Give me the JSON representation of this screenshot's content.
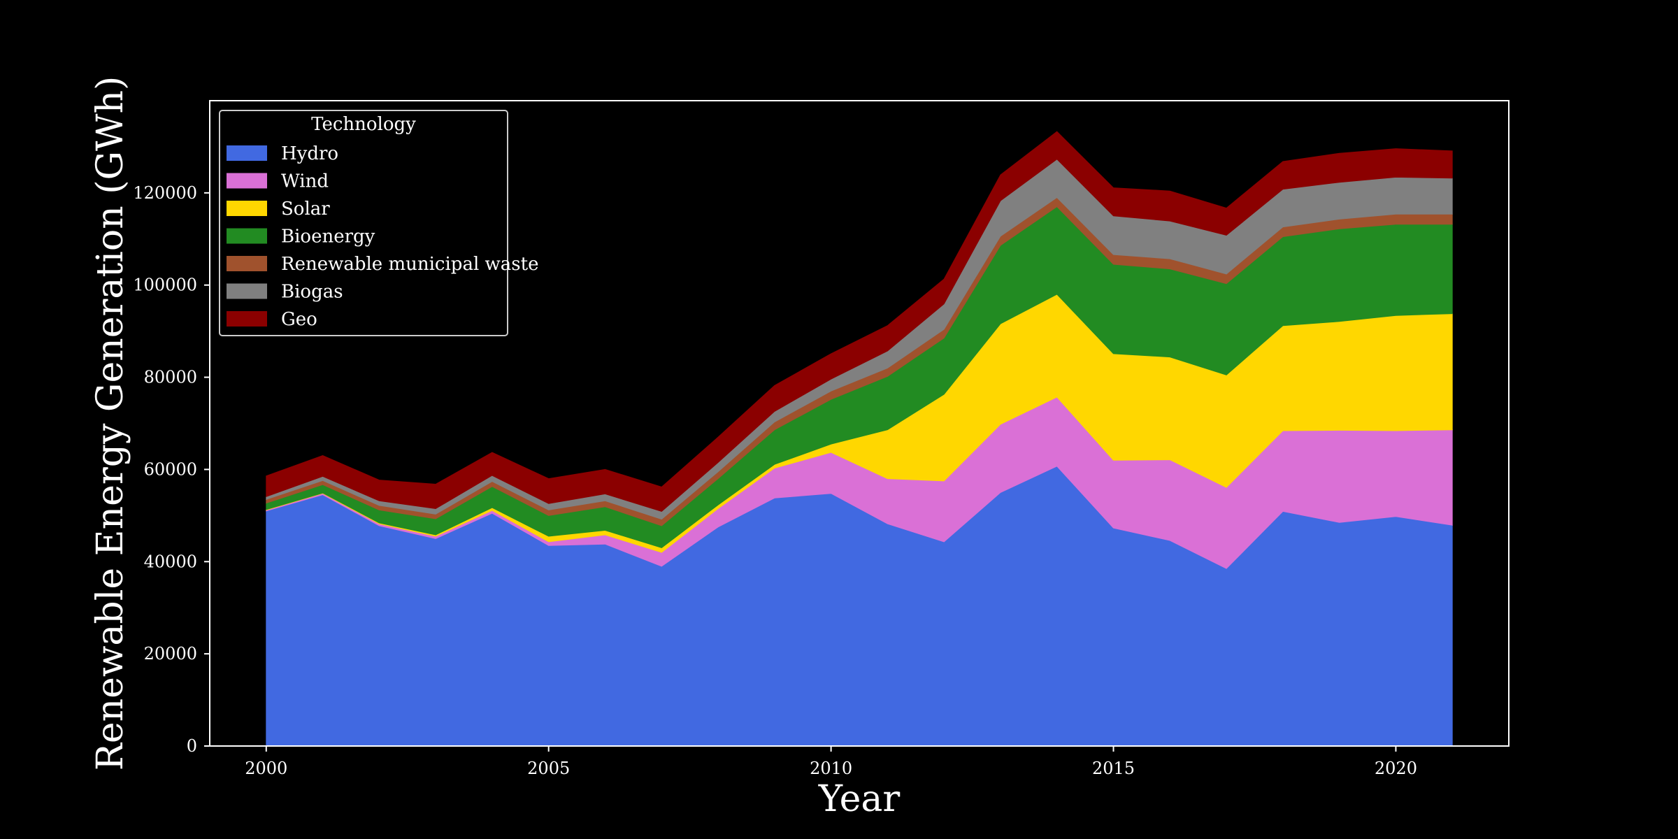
{
  "chart_data": {
    "type": "area",
    "stacked": true,
    "xlabel": "Year",
    "ylabel": "Renewable Energy Generation (GWh)",
    "xlim": [
      1999,
      2022
    ],
    "ylim": [
      0,
      140000
    ],
    "x_ticks": [
      2000,
      2005,
      2010,
      2015,
      2020
    ],
    "y_ticks": [
      0,
      20000,
      40000,
      60000,
      80000,
      100000,
      120000
    ],
    "legend": {
      "title": "Technology",
      "position": "upper-left"
    },
    "background": "#000000",
    "x": [
      2000,
      2001,
      2002,
      2003,
      2004,
      2005,
      2006,
      2007,
      2008,
      2009,
      2010,
      2011,
      2012,
      2013,
      2014,
      2015,
      2016,
      2017,
      2018,
      2019,
      2020,
      2021
    ],
    "series": [
      {
        "name": "Hydro",
        "color": "#4169E1",
        "values": [
          51000,
          54500,
          47800,
          45000,
          50500,
          43500,
          43800,
          39000,
          47500,
          53800,
          54800,
          48200,
          44300,
          55000,
          60700,
          47300,
          44600,
          38500,
          50900,
          48500,
          49800,
          47900
        ]
      },
      {
        "name": "Wind",
        "color": "#DA70D6",
        "values": [
          200,
          300,
          400,
          500,
          600,
          800,
          2000,
          3000,
          4000,
          6500,
          8900,
          9800,
          13200,
          14800,
          15000,
          14700,
          17500,
          17600,
          17500,
          20000,
          18600,
          20700
        ]
      },
      {
        "name": "Solar",
        "color": "#FFD700",
        "values": [
          100,
          100,
          200,
          300,
          600,
          1200,
          1000,
          1000,
          800,
          800,
          1800,
          10600,
          18800,
          21800,
          22300,
          23100,
          22300,
          24400,
          22800,
          23600,
          25000,
          25200
        ]
      },
      {
        "name": "Bioenergy",
        "color": "#228B22",
        "values": [
          1400,
          1800,
          2800,
          3500,
          4600,
          4500,
          5100,
          4800,
          5700,
          7500,
          9700,
          11600,
          12200,
          17000,
          19000,
          19400,
          19100,
          19800,
          19300,
          20100,
          19800,
          19400
        ]
      },
      {
        "name": "Renewable municipal waste",
        "color": "#A0522D",
        "values": [
          800,
          900,
          1000,
          1000,
          1100,
          1200,
          1300,
          1400,
          1500,
          1700,
          1800,
          1800,
          1900,
          2000,
          2000,
          2100,
          2200,
          2100,
          2100,
          2100,
          2200,
          2200
        ]
      },
      {
        "name": "Biogas",
        "color": "#808080",
        "values": [
          600,
          900,
          1000,
          1200,
          1300,
          1400,
          1500,
          1700,
          2000,
          2300,
          2600,
          3700,
          5500,
          7700,
          8300,
          8400,
          8200,
          8400,
          8200,
          8000,
          8000,
          7800
        ]
      },
      {
        "name": "Geo",
        "color": "#8B0000",
        "values": [
          4500,
          4500,
          4500,
          5300,
          5000,
          5400,
          5300,
          5300,
          5500,
          5600,
          5500,
          5500,
          5400,
          5600,
          6000,
          6100,
          6500,
          5900,
          6000,
          6300,
          6200,
          5900
        ]
      }
    ]
  }
}
